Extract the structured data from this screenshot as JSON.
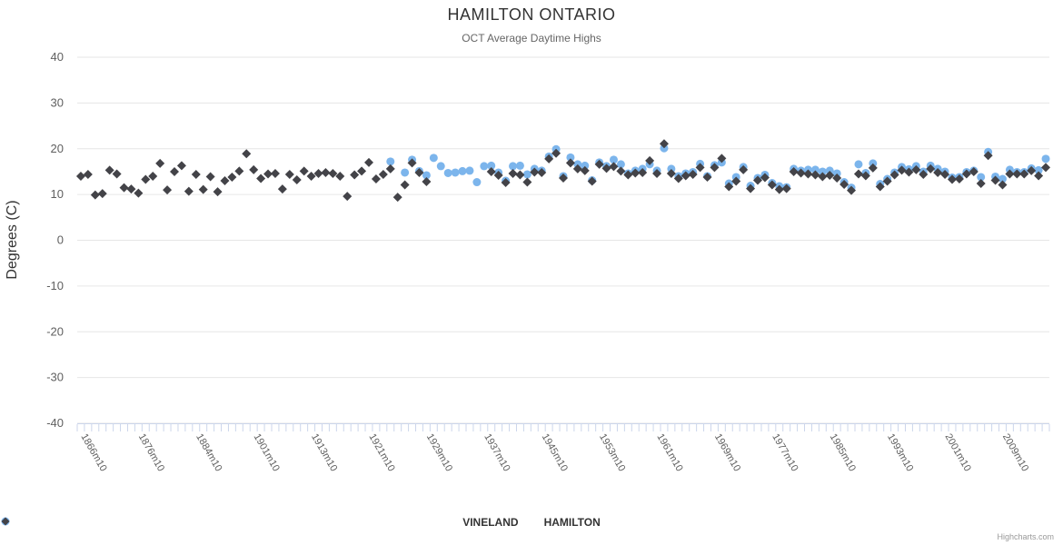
{
  "header": {
    "title": "HAMILTON ONTARIO",
    "subtitle": "OCT Average Daytime Highs"
  },
  "y_axis": {
    "title": "Degrees (C)"
  },
  "legend": {
    "items": [
      {
        "label": "VINELAND",
        "marker": "circle",
        "color": "#7cb5ec"
      },
      {
        "label": "HAMILTON",
        "marker": "diamond",
        "color": "#434348"
      }
    ]
  },
  "credit": {
    "label": "Highcharts.com"
  },
  "colors": {
    "grid": "#e6e6e6",
    "axis_line": "#ccd6eb",
    "tick": "#ccd6eb",
    "axis_label": "#606060",
    "vineland": "#7cb5ec",
    "hamilton": "#434348"
  },
  "chart_data": {
    "type": "scatter",
    "title": "HAMILTON ONTARIO",
    "subtitle": "OCT Average Daytime Highs",
    "xlabel": "",
    "ylabel": "Degrees (C)",
    "ylim": [
      -40,
      40
    ],
    "yticks": [
      40,
      30,
      20,
      10,
      0,
      -10,
      -20,
      -30,
      -40
    ],
    "ytick_labels": [
      "40",
      "30",
      "20",
      "10",
      "0",
      "-10",
      "-20",
      "-30",
      "-40"
    ],
    "grid": true,
    "legend_position": "bottom",
    "n_categories": 135,
    "xtick_positions": [
      0,
      8,
      16,
      24,
      32,
      40,
      48,
      56,
      64,
      72,
      80,
      88,
      96,
      104,
      112,
      120,
      128
    ],
    "xtick_labels": [
      "1866m10",
      "1876m10",
      "1884m10",
      "1901m10",
      "1913m10",
      "1921m10",
      "1929m10",
      "1937m10",
      "1945m10",
      "1953m10",
      "1961m10",
      "1969m10",
      "1977m10",
      "1985m10",
      "1993m10",
      "2001m10",
      "2009m10"
    ],
    "x_label_rotation_deg": 60,
    "series": [
      {
        "name": "VINELAND",
        "marker": "circle",
        "color": "#7cb5ec",
        "points": [
          [
            43,
            17.2
          ],
          [
            45,
            14.8
          ],
          [
            46,
            17.6
          ],
          [
            47,
            15.1
          ],
          [
            48,
            14.2
          ],
          [
            49,
            18.0
          ],
          [
            50,
            16.2
          ],
          [
            51,
            14.7
          ],
          [
            52,
            14.8
          ],
          [
            53,
            15.1
          ],
          [
            54,
            15.2
          ],
          [
            55,
            12.7
          ],
          [
            56,
            16.2
          ],
          [
            57,
            16.3
          ],
          [
            58,
            14.8
          ],
          [
            59,
            13.0
          ],
          [
            60,
            16.2
          ],
          [
            61,
            16.3
          ],
          [
            62,
            14.4
          ],
          [
            63,
            15.6
          ],
          [
            64,
            15.2
          ],
          [
            65,
            18.3
          ],
          [
            66,
            19.9
          ],
          [
            67,
            14.0
          ],
          [
            68,
            18.1
          ],
          [
            69,
            16.6
          ],
          [
            70,
            16.3
          ],
          [
            71,
            13.1
          ],
          [
            72,
            17.0
          ],
          [
            73,
            16.2
          ],
          [
            74,
            17.6
          ],
          [
            75,
            16.6
          ],
          [
            76,
            14.6
          ],
          [
            77,
            15.2
          ],
          [
            78,
            15.6
          ],
          [
            79,
            16.6
          ],
          [
            80,
            15.2
          ],
          [
            81,
            20.1
          ],
          [
            82,
            15.6
          ],
          [
            83,
            14.0
          ],
          [
            84,
            14.6
          ],
          [
            85,
            14.9
          ],
          [
            86,
            16.7
          ],
          [
            87,
            14.0
          ],
          [
            88,
            16.4
          ],
          [
            89,
            17.0
          ],
          [
            90,
            12.4
          ],
          [
            91,
            13.8
          ],
          [
            92,
            16.0
          ],
          [
            93,
            11.9
          ],
          [
            94,
            13.6
          ],
          [
            95,
            14.3
          ],
          [
            96,
            12.5
          ],
          [
            97,
            11.8
          ],
          [
            98,
            11.6
          ],
          [
            99,
            15.6
          ],
          [
            100,
            15.2
          ],
          [
            101,
            15.4
          ],
          [
            102,
            15.4
          ],
          [
            103,
            15.0
          ],
          [
            104,
            15.2
          ],
          [
            105,
            14.6
          ],
          [
            106,
            12.7
          ],
          [
            107,
            11.5
          ],
          [
            108,
            16.6
          ],
          [
            109,
            14.7
          ],
          [
            110,
            16.8
          ],
          [
            111,
            12.3
          ],
          [
            112,
            13.4
          ],
          [
            113,
            14.8
          ],
          [
            114,
            16.0
          ],
          [
            115,
            15.5
          ],
          [
            116,
            16.2
          ],
          [
            117,
            15.0
          ],
          [
            118,
            16.3
          ],
          [
            119,
            15.6
          ],
          [
            120,
            15.0
          ],
          [
            121,
            13.7
          ],
          [
            122,
            13.8
          ],
          [
            123,
            14.9
          ],
          [
            124,
            15.2
          ],
          [
            125,
            13.8
          ],
          [
            126,
            19.3
          ],
          [
            127,
            13.9
          ],
          [
            128,
            13.4
          ],
          [
            129,
            15.4
          ],
          [
            130,
            14.9
          ],
          [
            131,
            14.9
          ],
          [
            132,
            15.7
          ],
          [
            133,
            15.3
          ],
          [
            134,
            17.8
          ]
        ]
      },
      {
        "name": "HAMILTON",
        "marker": "diamond",
        "color": "#434348",
        "points": [
          [
            0,
            14.0
          ],
          [
            1,
            14.4
          ],
          [
            2,
            9.9
          ],
          [
            3,
            10.2
          ],
          [
            4,
            15.3
          ],
          [
            5,
            14.5
          ],
          [
            6,
            11.5
          ],
          [
            7,
            11.2
          ],
          [
            8,
            10.3
          ],
          [
            9,
            13.3
          ],
          [
            10,
            14.0
          ],
          [
            11,
            16.8
          ],
          [
            12,
            11.0
          ],
          [
            13,
            15.0
          ],
          [
            14,
            16.3
          ],
          [
            15,
            10.7
          ],
          [
            16,
            14.4
          ],
          [
            17,
            11.1
          ],
          [
            18,
            13.9
          ],
          [
            19,
            10.6
          ],
          [
            20,
            13.0
          ],
          [
            21,
            13.8
          ],
          [
            22,
            15.1
          ],
          [
            23,
            18.9
          ],
          [
            24,
            15.4
          ],
          [
            25,
            13.5
          ],
          [
            26,
            14.5
          ],
          [
            27,
            14.6
          ],
          [
            28,
            11.2
          ],
          [
            29,
            14.4
          ],
          [
            30,
            13.2
          ],
          [
            31,
            15.1
          ],
          [
            32,
            14.0
          ],
          [
            33,
            14.6
          ],
          [
            34,
            14.8
          ],
          [
            35,
            14.6
          ],
          [
            36,
            14.0
          ],
          [
            37,
            9.6
          ],
          [
            38,
            14.3
          ],
          [
            39,
            15.1
          ],
          [
            40,
            17.0
          ],
          [
            41,
            13.4
          ],
          [
            42,
            14.4
          ],
          [
            43,
            15.6
          ],
          [
            44,
            9.4
          ],
          [
            45,
            12.1
          ],
          [
            46,
            16.9
          ],
          [
            47,
            14.8
          ],
          [
            48,
            12.8
          ],
          [
            57,
            15.0
          ],
          [
            58,
            14.2
          ],
          [
            59,
            12.6
          ],
          [
            60,
            14.6
          ],
          [
            61,
            14.3
          ],
          [
            62,
            12.7
          ],
          [
            63,
            14.9
          ],
          [
            64,
            14.8
          ],
          [
            65,
            17.8
          ],
          [
            66,
            19.0
          ],
          [
            67,
            13.6
          ],
          [
            68,
            16.9
          ],
          [
            69,
            15.6
          ],
          [
            70,
            15.2
          ],
          [
            71,
            12.9
          ],
          [
            72,
            16.6
          ],
          [
            73,
            15.7
          ],
          [
            74,
            16.1
          ],
          [
            75,
            15.1
          ],
          [
            76,
            14.3
          ],
          [
            77,
            14.7
          ],
          [
            78,
            14.8
          ],
          [
            79,
            17.4
          ],
          [
            80,
            14.6
          ],
          [
            81,
            21.1
          ],
          [
            82,
            14.6
          ],
          [
            83,
            13.5
          ],
          [
            84,
            14.1
          ],
          [
            85,
            14.4
          ],
          [
            86,
            15.9
          ],
          [
            87,
            13.8
          ],
          [
            88,
            15.9
          ],
          [
            89,
            17.9
          ],
          [
            90,
            11.7
          ],
          [
            91,
            12.9
          ],
          [
            92,
            15.4
          ],
          [
            93,
            11.3
          ],
          [
            94,
            13.1
          ],
          [
            95,
            13.7
          ],
          [
            96,
            12.1
          ],
          [
            97,
            11.1
          ],
          [
            98,
            11.3
          ],
          [
            99,
            15.0
          ],
          [
            100,
            14.7
          ],
          [
            101,
            14.5
          ],
          [
            102,
            14.3
          ],
          [
            103,
            13.9
          ],
          [
            104,
            14.2
          ],
          [
            105,
            13.6
          ],
          [
            106,
            12.2
          ],
          [
            107,
            10.9
          ],
          [
            108,
            14.5
          ],
          [
            109,
            14.1
          ],
          [
            110,
            15.8
          ],
          [
            111,
            11.7
          ],
          [
            112,
            12.9
          ],
          [
            113,
            14.3
          ],
          [
            114,
            15.3
          ],
          [
            115,
            14.9
          ],
          [
            116,
            15.4
          ],
          [
            117,
            14.4
          ],
          [
            118,
            15.6
          ],
          [
            119,
            14.8
          ],
          [
            120,
            14.4
          ],
          [
            121,
            13.3
          ],
          [
            122,
            13.4
          ],
          [
            123,
            14.5
          ],
          [
            124,
            15.0
          ],
          [
            125,
            12.4
          ],
          [
            126,
            18.5
          ],
          [
            127,
            13.1
          ],
          [
            128,
            12.1
          ],
          [
            129,
            14.5
          ],
          [
            130,
            14.5
          ],
          [
            131,
            14.5
          ],
          [
            132,
            15.2
          ],
          [
            133,
            14.1
          ],
          [
            134,
            15.9
          ]
        ]
      }
    ]
  }
}
